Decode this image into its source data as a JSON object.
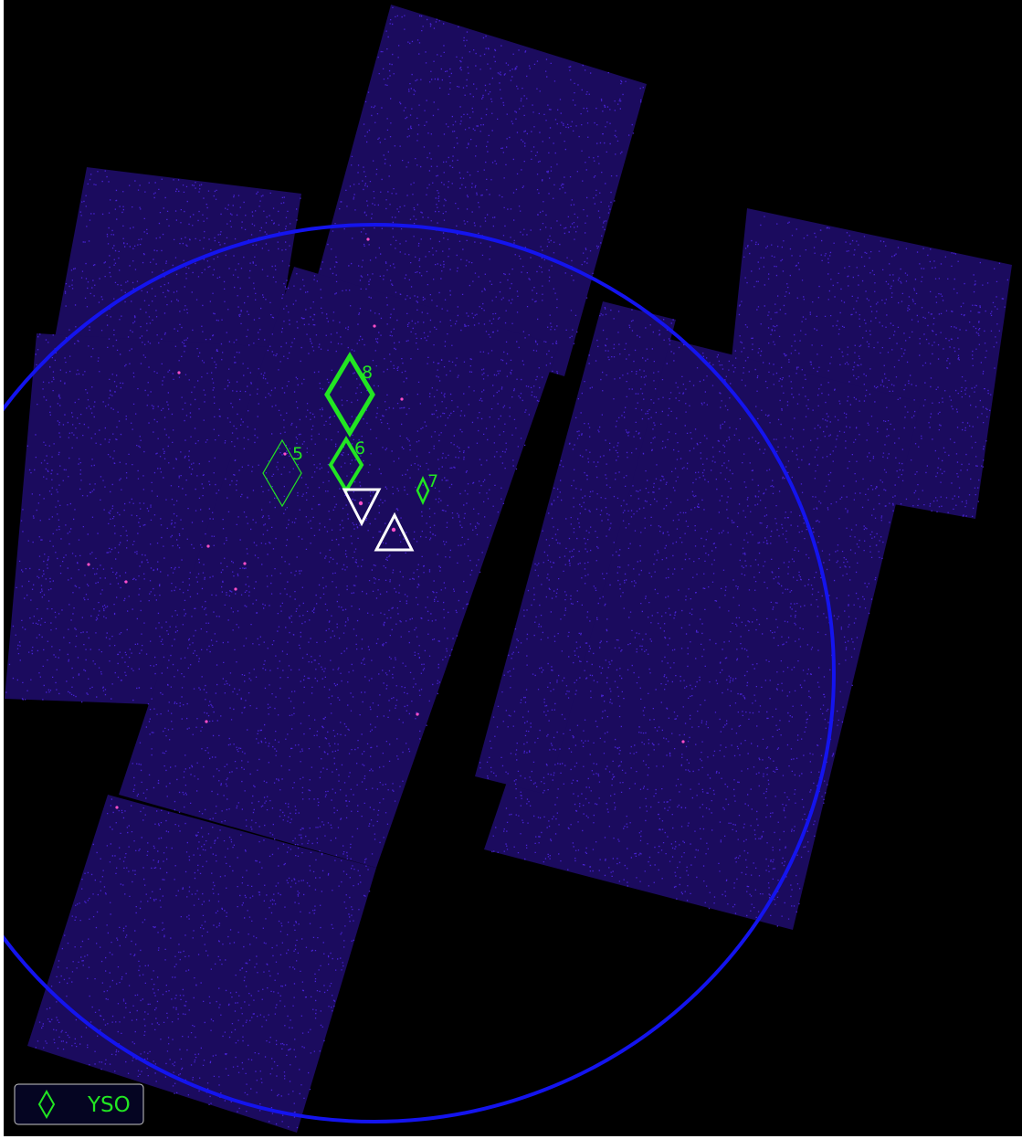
{
  "colors": {
    "background": "#000000",
    "exposure": "#1b0b5e",
    "photon": "#5a2cff",
    "hot_photon": "#ff4fc8",
    "field_circle": "#1414ee",
    "yso": "#22e622",
    "other_source": "#ffffff",
    "legend_fill": "#050522",
    "legend_border": "#c8c8c8"
  },
  "markers": [
    {
      "label": "8",
      "shape": "diamond",
      "icon": "yso-diamond-icon"
    },
    {
      "label": "5",
      "shape": "diamond",
      "icon": "yso-diamond-icon"
    },
    {
      "label": "6",
      "shape": "diamond",
      "icon": "yso-diamond-icon"
    },
    {
      "label": "7",
      "shape": "diamond",
      "icon": "yso-diamond-icon"
    },
    {
      "label": "",
      "shape": "triangle-down",
      "icon": "triangle-down-icon"
    },
    {
      "label": "",
      "shape": "triangle-up",
      "icon": "triangle-up-icon"
    }
  ],
  "legend": {
    "items": [
      {
        "label": "YSO",
        "icon": "yso-diamond-icon"
      }
    ]
  }
}
